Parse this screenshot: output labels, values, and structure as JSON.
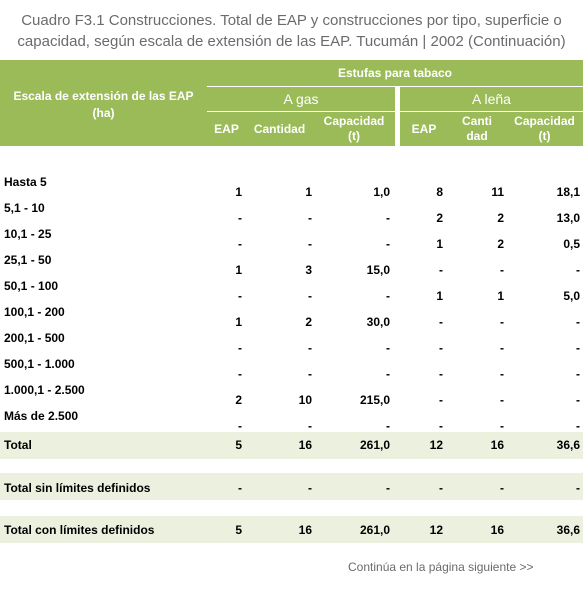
{
  "caption": {
    "line1": "Cuadro F3.1 Construcciones. Total de EAP y construcciones por tipo, superficie o",
    "line2": "capacidad, según escala de extensión de las EAP. Tucumán | 2002 (Continuación)"
  },
  "header": {
    "row_label": "Escala de extensión de las EAP (ha)",
    "group": "Estufas para tabaco",
    "subgroups": [
      "A gas",
      "A leña"
    ],
    "columns": [
      "EAP",
      "Cantidad",
      "Capacidad (t)",
      "EAP",
      "Cantidad",
      "Capacidad (t)"
    ]
  },
  "rows": [
    {
      "label": "Hasta 5",
      "values": [
        "1",
        "1",
        "1,0",
        "8",
        "11",
        "18,1"
      ]
    },
    {
      "label": "5,1 - 10",
      "values": [
        "-",
        "-",
        "-",
        "2",
        "2",
        "13,0"
      ]
    },
    {
      "label": "10,1 - 25",
      "values": [
        "-",
        "-",
        "-",
        "1",
        "2",
        "0,5"
      ]
    },
    {
      "label": "25,1 - 50",
      "values": [
        "1",
        "3",
        "15,0",
        "-",
        "-",
        "-"
      ]
    },
    {
      "label": "50,1 - 100",
      "values": [
        "-",
        "-",
        "-",
        "1",
        "1",
        "5,0"
      ]
    },
    {
      "label": "100,1 - 200",
      "values": [
        "1",
        "2",
        "30,0",
        "-",
        "-",
        "-"
      ]
    },
    {
      "label": "200,1 - 500",
      "values": [
        "-",
        "-",
        "-",
        "-",
        "-",
        "-"
      ]
    },
    {
      "label": "500,1 - 1.000",
      "values": [
        "-",
        "-",
        "-",
        "-",
        "-",
        "-"
      ]
    },
    {
      "label": "1.000,1 - 2.500",
      "values": [
        "2",
        "10",
        "215,0",
        "-",
        "-",
        "-"
      ]
    },
    {
      "label": "Más de 2.500",
      "values": [
        "-",
        "-",
        "-",
        "-",
        "-",
        "-"
      ]
    }
  ],
  "totals": [
    {
      "label": "Total",
      "values": [
        "5",
        "16",
        "261,0",
        "12",
        "16",
        "36,6"
      ]
    },
    {
      "label": "Total sin límites definidos",
      "values": [
        "-",
        "-",
        "-",
        "-",
        "-",
        "-"
      ]
    },
    {
      "label": "Total con límites definidos",
      "values": [
        "5",
        "16",
        "261,0",
        "12",
        "16",
        "36,6"
      ]
    }
  ],
  "footer": "Continúa en la página siguiente >>"
}
